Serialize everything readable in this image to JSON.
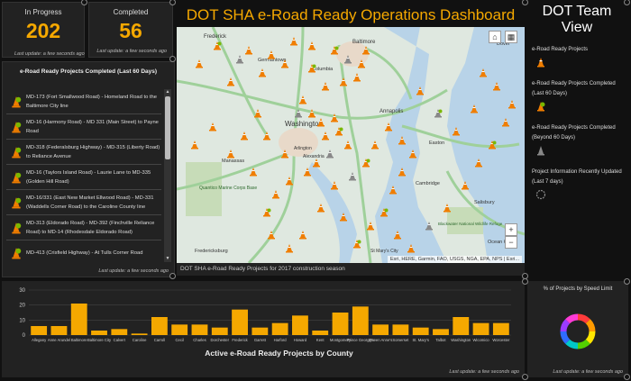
{
  "indicators": {
    "in_progress": {
      "title": "In Progress",
      "value": "202",
      "footer": "Last update: a few seconds ago"
    },
    "completed": {
      "title": "Completed",
      "value": "56",
      "footer": "Last update: a few seconds ago"
    }
  },
  "header": {
    "title": "DOT SHA e-Road Ready Operations Dashboard"
  },
  "team": {
    "title": "DOT Team View"
  },
  "project_list": {
    "title": "e-Road Ready Projects Completed (Last 60 Days)",
    "footer": "Last update: a few seconds ago",
    "items": [
      "MD-173 (Fort Smallwood Road) - Homeland Road to the Baltimore City line",
      "MD-16 (Harmony Road) - MD 331 (Main Street) to Payne Road",
      "MD-318 (Federalsburg Highway) - MD-315 (Liberty Road) to Reliance Avenue",
      "MD-16 (Taylors Island Road) - Laurie Lane to MD-335 (Golden Hill Road)",
      "MD-16/331 (East New Market Ellwood Road) - MD-331 (Waddells Corner Road) to the Caroline County line",
      "MD-313 (Eldorado Road) - MD-392 (Finchville Reliance Road) to MD-14 (Rhodesdale Eldorado Road)",
      "MD-413 (Crisfield Highway) - At Tulls Corner Road"
    ]
  },
  "map": {
    "caption": "DOT SHA e-Road Ready Projects for 2017 construction season",
    "attribution": "Esri, HERE, Garmin, FAO, USGS, NGA, EPA, NPS | Esri...",
    "labels": {
      "washington": "Washington",
      "baltimore": "Baltimore",
      "annapolis": "Annapolis",
      "frederick": "Frederick",
      "arlington": "Arlington",
      "alexandria": "Alexandria",
      "germantown": "Germantown",
      "columbia": "Columbia",
      "dover": "Dover",
      "salisbury": "Salisbury",
      "ocean_city": "Ocean City",
      "easton": "Easton",
      "manassas": "Manassas",
      "fredericksburg": "Fredericksburg",
      "st_marys": "St Mary's City",
      "quantico": "Quantico Marine Corps Base",
      "cambridge": "Cambridge",
      "blackwater": "Blackwater National Wildlife Refuge"
    },
    "zoom_in": "+",
    "zoom_out": "−"
  },
  "legend": {
    "items": [
      {
        "label": "e-Road Ready Projects",
        "color": "#f07d00"
      },
      {
        "label": "e-Road Ready Projects Completed (Last 60 Days)",
        "color": "#7ab800"
      },
      {
        "label": "e-Road Ready Projects Completed (Beyond 60 Days)",
        "color": "#888888"
      },
      {
        "label": "Project Information Recently Updated (Last 7 days)",
        "color": "#888888"
      }
    ]
  },
  "chart_data": {
    "type": "bar",
    "title": "Active e-Road Ready Projects by County",
    "categories": [
      "Allegany",
      "Anne Arundel",
      "Baltimore",
      "Baltimore City",
      "Calvert",
      "Caroline",
      "Carroll",
      "Cecil",
      "Charles",
      "Dorchester",
      "Frederick",
      "Garrett",
      "Harford",
      "Howard",
      "Kent",
      "Montgomery",
      "Prince George's",
      "Queen Anne's",
      "Somerset",
      "St. Mary's",
      "Talbot",
      "Washington",
      "Wicomico",
      "Worcester"
    ],
    "values": [
      6,
      6,
      21,
      3,
      4,
      1,
      12,
      7,
      7,
      5,
      17,
      5,
      8,
      13,
      3,
      15,
      19,
      7,
      7,
      5,
      4,
      12,
      8,
      8
    ],
    "ylim": [
      0,
      30
    ],
    "yticks": [
      0,
      10,
      20,
      30
    ],
    "bar_color": "#f5a800",
    "footer": "Last update: a few seconds ago"
  },
  "donut": {
    "title": "% of Projects by Speed Limit",
    "colors": [
      "#ff3b3b",
      "#ff9b00",
      "#ffe600",
      "#53d000",
      "#00c8c8",
      "#2f6bff",
      "#9b3bff",
      "#ff3bd6"
    ],
    "footer": "Last update: a few seconds ago"
  }
}
